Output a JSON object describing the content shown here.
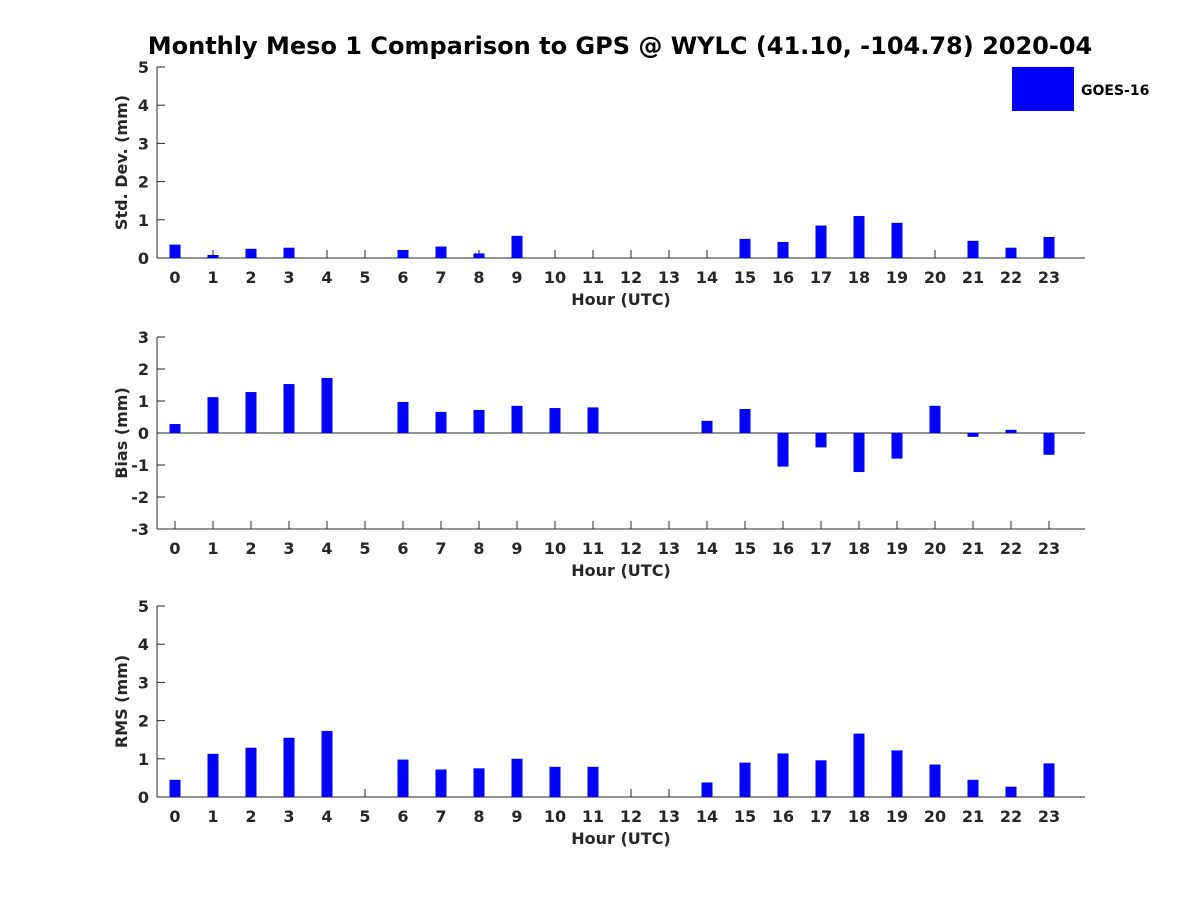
{
  "title": "Monthly Meso 1 Comparison to GPS @ WYLC (41.10, -104.78) 2020-04",
  "legend": {
    "label": "GOES-16",
    "color": "#0000ff"
  },
  "bar_color": "#0000ff",
  "chart_data": [
    {
      "type": "bar",
      "ylabel": "Std. Dev. (mm)",
      "xlabel": "Hour (UTC)",
      "ylim": [
        0,
        5
      ],
      "yticks": [
        "0",
        "1",
        "2",
        "3",
        "4",
        "5"
      ],
      "categories": [
        "0",
        "1",
        "2",
        "3",
        "4",
        "5",
        "6",
        "7",
        "8",
        "9",
        "10",
        "11",
        "12",
        "13",
        "14",
        "15",
        "16",
        "17",
        "18",
        "19",
        "20",
        "21",
        "22",
        "23"
      ],
      "values": [
        0.35,
        0.08,
        0.24,
        0.27,
        0,
        0,
        0.21,
        0.3,
        0.12,
        0.58,
        0,
        0,
        0,
        0,
        0,
        0.5,
        0.42,
        0.85,
        1.1,
        0.92,
        0,
        0.45,
        0.27,
        0.55
      ]
    },
    {
      "type": "bar",
      "ylabel": "Bias (mm)",
      "xlabel": "Hour (UTC)",
      "ylim": [
        -3,
        3
      ],
      "yticks": [
        "-3",
        "-2",
        "-1",
        "0",
        "1",
        "2",
        "3"
      ],
      "categories": [
        "0",
        "1",
        "2",
        "3",
        "4",
        "5",
        "6",
        "7",
        "8",
        "9",
        "10",
        "11",
        "12",
        "13",
        "14",
        "15",
        "16",
        "17",
        "18",
        "19",
        "20",
        "21",
        "22",
        "23"
      ],
      "values": [
        0.28,
        1.12,
        1.28,
        1.53,
        1.72,
        0,
        0.97,
        0.66,
        0.72,
        0.85,
        0.78,
        0.8,
        0,
        0,
        0.38,
        0.75,
        -1.05,
        -0.45,
        -1.22,
        -0.8,
        0.85,
        -0.12,
        0.1,
        -0.68
      ]
    },
    {
      "type": "bar",
      "ylabel": "RMS (mm)",
      "xlabel": "Hour (UTC)",
      "ylim": [
        0,
        5
      ],
      "yticks": [
        "0",
        "1",
        "2",
        "3",
        "4",
        "5"
      ],
      "categories": [
        "0",
        "1",
        "2",
        "3",
        "4",
        "5",
        "6",
        "7",
        "8",
        "9",
        "10",
        "11",
        "12",
        "13",
        "14",
        "15",
        "16",
        "17",
        "18",
        "19",
        "20",
        "21",
        "22",
        "23"
      ],
      "values": [
        0.45,
        1.13,
        1.29,
        1.55,
        1.73,
        0,
        0.98,
        0.72,
        0.75,
        1.0,
        0.79,
        0.79,
        0,
        0,
        0.38,
        0.9,
        1.14,
        0.96,
        1.66,
        1.22,
        0.85,
        0.45,
        0.27,
        0.88
      ]
    }
  ]
}
